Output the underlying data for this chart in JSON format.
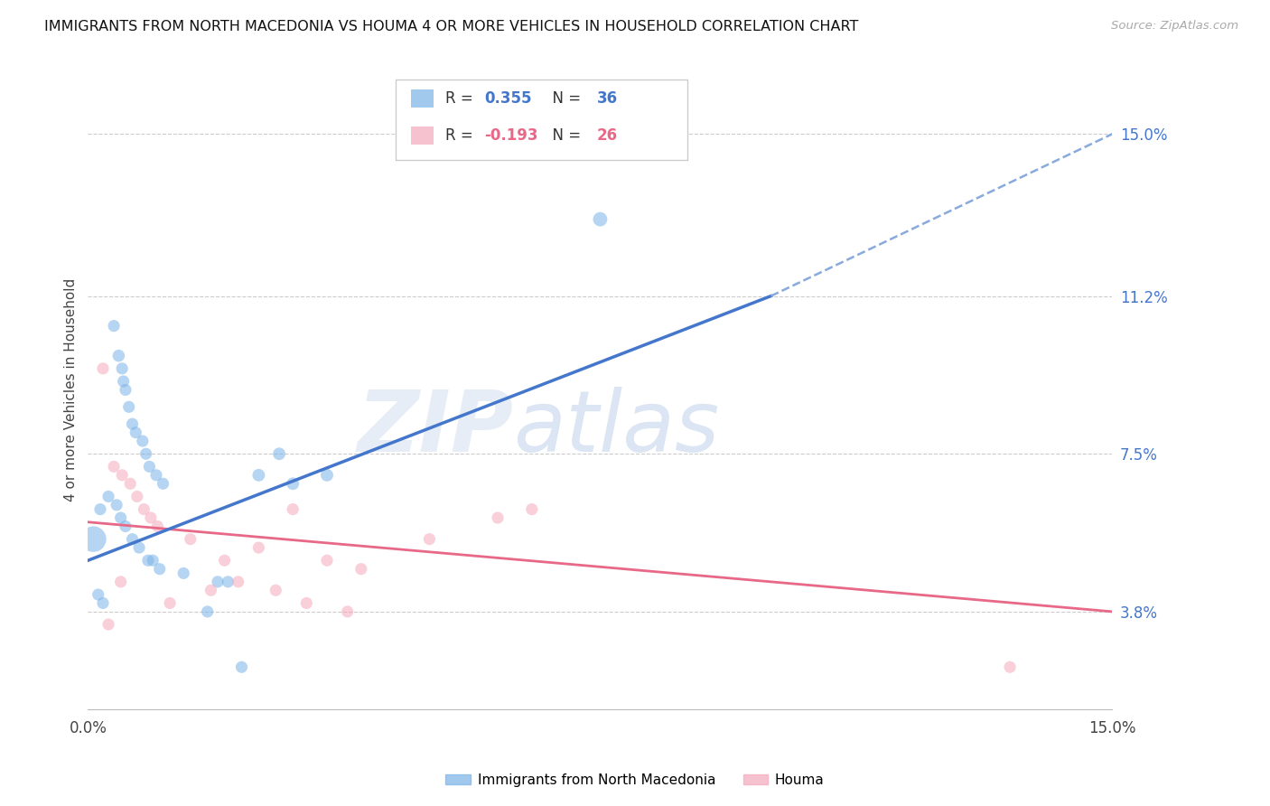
{
  "title": "IMMIGRANTS FROM NORTH MACEDONIA VS HOUMA 4 OR MORE VEHICLES IN HOUSEHOLD CORRELATION CHART",
  "source": "Source: ZipAtlas.com",
  "ylabel": "4 or more Vehicles in Household",
  "right_ytick_vals": [
    3.8,
    7.5,
    11.2,
    15.0
  ],
  "xlim": [
    0.0,
    15.0
  ],
  "ylim": [
    1.5,
    16.5
  ],
  "y_data_min": 1.5,
  "y_data_max": 16.5,
  "legend1_r": "0.355",
  "legend1_n": "36",
  "legend2_r": "-0.193",
  "legend2_n": "26",
  "blue_color": "#7ab3e8",
  "pink_color": "#f5a8bb",
  "blue_line_color": "#4477cc",
  "pink_line_color": "#e86888",
  "dashed_line_color": "#88aadd",
  "watermark_zip": "ZIP",
  "watermark_atlas": "atlas",
  "background_color": "#ffffff",
  "grid_color": "#cccccc",
  "blue_scatter_x": [
    0.18,
    0.38,
    0.45,
    0.5,
    0.52,
    0.55,
    0.6,
    0.65,
    0.7,
    0.8,
    0.85,
    0.9,
    1.0,
    1.1,
    0.3,
    0.42,
    0.48,
    0.55,
    0.65,
    0.75,
    0.88,
    0.95,
    1.05,
    1.4,
    1.9,
    2.05,
    2.5,
    2.8,
    3.0,
    3.5,
    0.15,
    0.22,
    1.75,
    2.25,
    7.5,
    0.08
  ],
  "blue_scatter_y": [
    6.2,
    10.5,
    9.8,
    9.5,
    9.2,
    9.0,
    8.6,
    8.2,
    8.0,
    7.8,
    7.5,
    7.2,
    7.0,
    6.8,
    6.5,
    6.3,
    6.0,
    5.8,
    5.5,
    5.3,
    5.0,
    5.0,
    4.8,
    4.7,
    4.5,
    4.5,
    7.0,
    7.5,
    6.8,
    7.0,
    4.2,
    4.0,
    3.8,
    2.5,
    13.0,
    5.5
  ],
  "blue_scatter_sizes": [
    90,
    90,
    95,
    90,
    90,
    90,
    90,
    90,
    90,
    90,
    90,
    90,
    90,
    90,
    90,
    90,
    90,
    90,
    90,
    90,
    90,
    90,
    90,
    90,
    90,
    90,
    100,
    100,
    100,
    100,
    90,
    90,
    90,
    90,
    130,
    420
  ],
  "pink_scatter_x": [
    0.22,
    0.38,
    0.5,
    0.62,
    0.72,
    0.82,
    0.92,
    1.02,
    1.5,
    2.0,
    2.5,
    3.0,
    3.5,
    4.0,
    5.0,
    6.5,
    1.2,
    1.8,
    2.2,
    2.75,
    3.2,
    3.8,
    0.48,
    0.3,
    13.5,
    6.0
  ],
  "pink_scatter_y": [
    9.5,
    7.2,
    7.0,
    6.8,
    6.5,
    6.2,
    6.0,
    5.8,
    5.5,
    5.0,
    5.3,
    6.2,
    5.0,
    4.8,
    5.5,
    6.2,
    4.0,
    4.3,
    4.5,
    4.3,
    4.0,
    3.8,
    4.5,
    3.5,
    2.5,
    6.0
  ],
  "pink_scatter_sizes": [
    90,
    90,
    90,
    90,
    90,
    90,
    90,
    90,
    90,
    90,
    90,
    90,
    90,
    90,
    90,
    90,
    90,
    90,
    90,
    90,
    90,
    90,
    90,
    90,
    90,
    90
  ],
  "blue_line_x0": 0.0,
  "blue_line_y0": 5.0,
  "blue_line_x1": 10.0,
  "blue_line_y1": 11.2,
  "blue_dash_x1": 15.0,
  "blue_dash_y1": 15.0,
  "pink_line_x0": 0.0,
  "pink_line_y0": 5.9,
  "pink_line_x1": 15.0,
  "pink_line_y1": 3.8
}
